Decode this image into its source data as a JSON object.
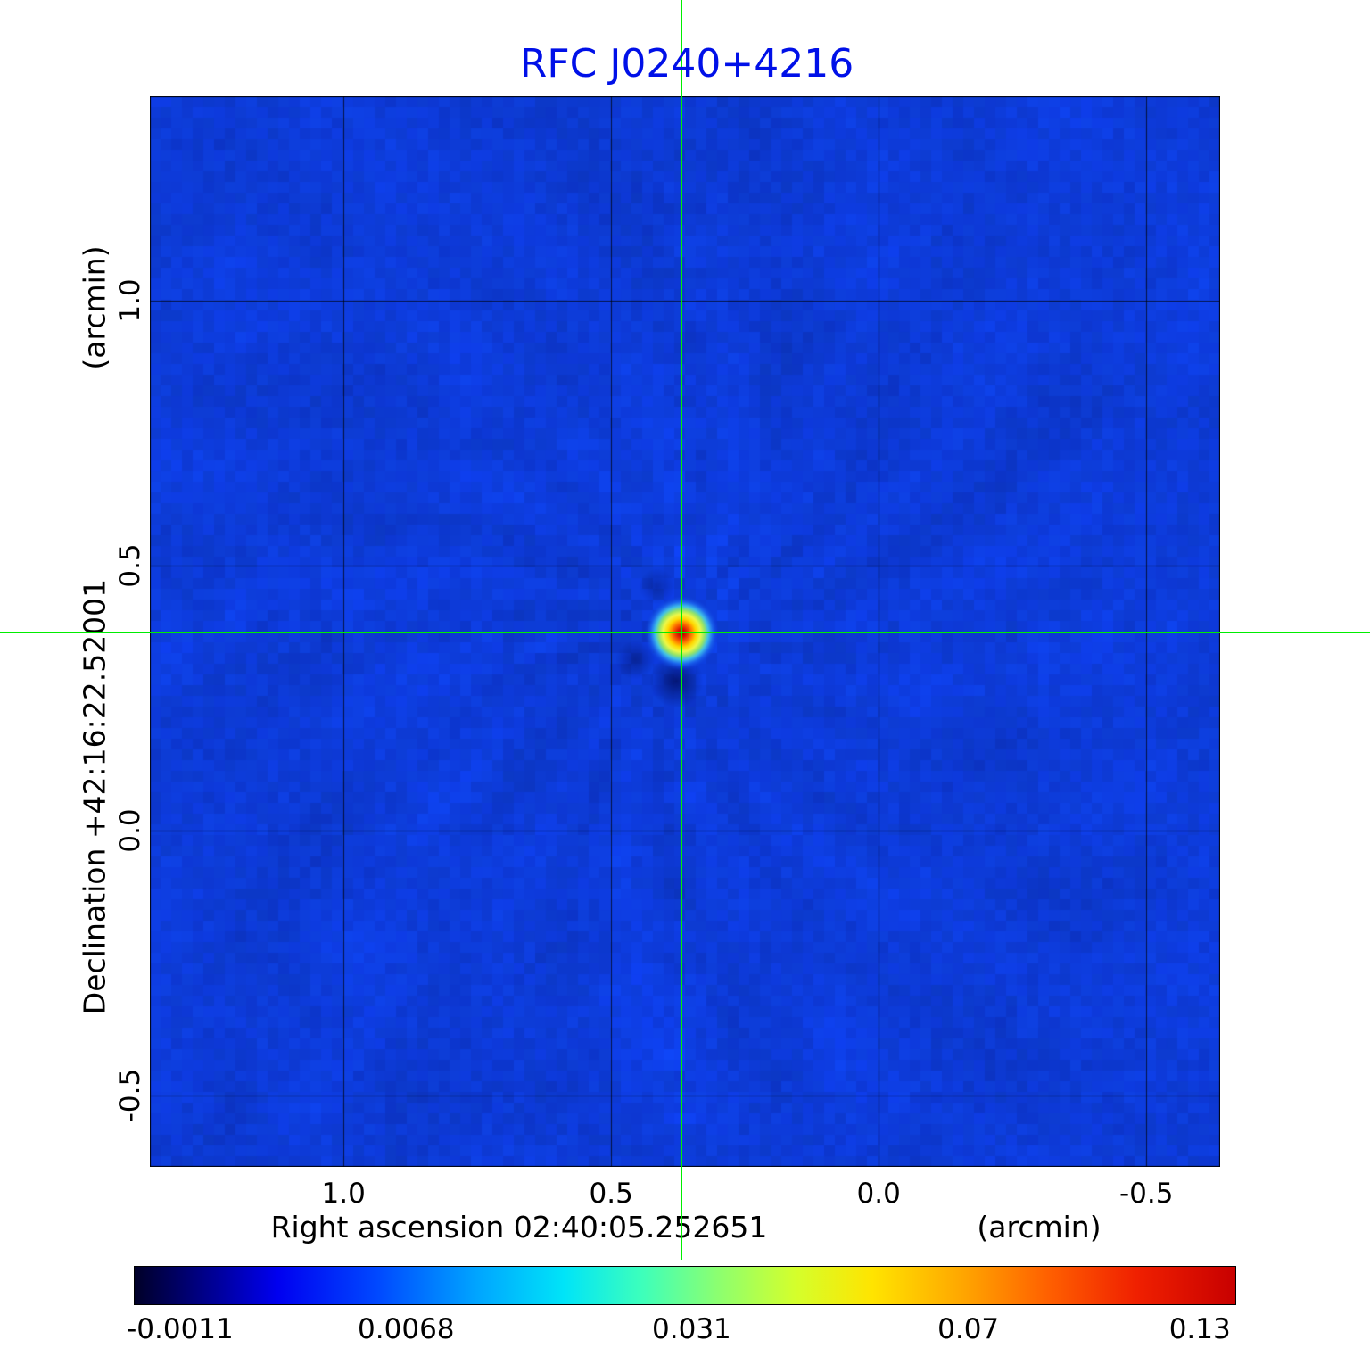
{
  "chart_data": {
    "type": "heatmap",
    "title": "RFC J0240+4216",
    "title_color": "#0010e8",
    "xlabel": "Right ascension  02:40:05.252651",
    "xunit": "(arcmin)",
    "ylabel": "Declination  +42:16:22.52001",
    "yunit": "(arcmin)",
    "x_tick_labels": [
      "1.0",
      "0.5",
      "0.0",
      "-0.5"
    ],
    "x_tick_values": [
      1.0,
      0.5,
      0.0,
      -0.5
    ],
    "y_tick_labels": [
      "1.0",
      "0.5",
      "0.0",
      "-0.5"
    ],
    "y_tick_values": [
      1.0,
      0.5,
      0.0,
      -0.5
    ],
    "x_range": [
      1.362,
      -0.638
    ],
    "y_range": [
      1.386,
      -0.635
    ],
    "grid": true,
    "background_color": "#0d3bd8",
    "crosshair_color": "#00ee00",
    "source": {
      "ra_offset_arcmin": 0.368,
      "dec_offset_arcmin": 0.373,
      "peak_value": 0.13
    },
    "source_gradient": [
      {
        "pos": 0.0,
        "color": "#a80000"
      },
      {
        "pos": 0.12,
        "color": "#dd1c00"
      },
      {
        "pos": 0.26,
        "color": "#ff7800"
      },
      {
        "pos": 0.38,
        "color": "#ffd800"
      },
      {
        "pos": 0.5,
        "color": "#eef848"
      },
      {
        "pos": 0.61,
        "color": "#94e468"
      },
      {
        "pos": 0.71,
        "color": "#40c0e8"
      },
      {
        "pos": 0.83,
        "color": "#1c66ee"
      },
      {
        "pos": 1.0,
        "color": "rgba(13,59,216,0)"
      }
    ],
    "colorbar": {
      "value_min": -0.0011,
      "value_max": 0.13,
      "tick_labels": [
        "-0.0011",
        "0.0068",
        "0.031",
        "0.07",
        "0.13"
      ],
      "tick_positions": [
        0.042,
        0.247,
        0.506,
        0.757,
        0.967
      ],
      "gradient": [
        {
          "pos": 0.0,
          "color": "#000028"
        },
        {
          "pos": 0.06,
          "color": "#000084"
        },
        {
          "pos": 0.13,
          "color": "#0000f0"
        },
        {
          "pos": 0.22,
          "color": "#0048ff"
        },
        {
          "pos": 0.31,
          "color": "#00a4ff"
        },
        {
          "pos": 0.39,
          "color": "#00e4f8"
        },
        {
          "pos": 0.46,
          "color": "#3cffbc"
        },
        {
          "pos": 0.53,
          "color": "#8cff70"
        },
        {
          "pos": 0.6,
          "color": "#d4ff2c"
        },
        {
          "pos": 0.67,
          "color": "#ffe400"
        },
        {
          "pos": 0.75,
          "color": "#ffa800"
        },
        {
          "pos": 0.83,
          "color": "#ff6000"
        },
        {
          "pos": 0.91,
          "color": "#f02000"
        },
        {
          "pos": 1.0,
          "color": "#c80000"
        }
      ]
    }
  }
}
